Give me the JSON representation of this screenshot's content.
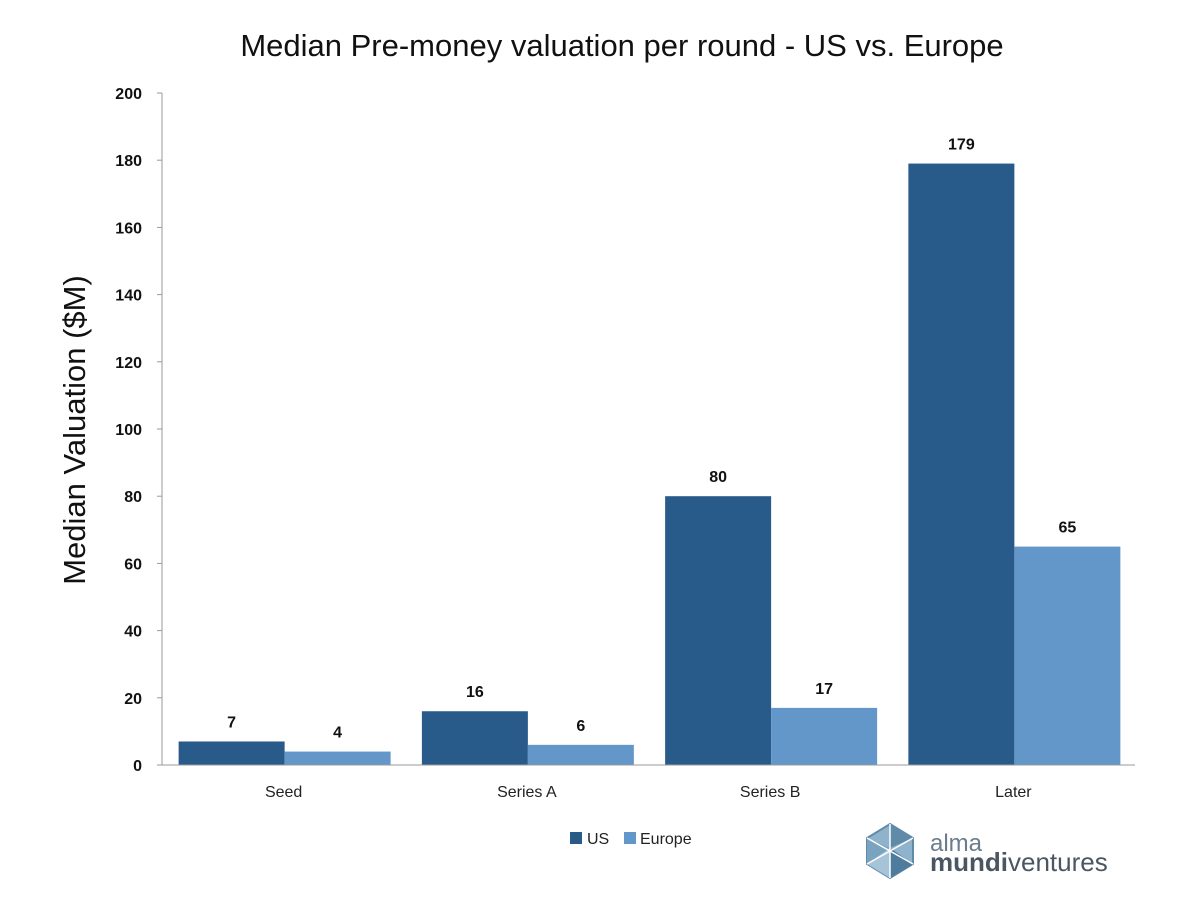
{
  "chart_data": {
    "type": "bar",
    "title": "Median Pre-money valuation per round - US vs. Europe",
    "xlabel": "",
    "ylabel": "Median Valuation ($M)",
    "ylim": [
      0,
      200
    ],
    "yticks": [
      0,
      20,
      40,
      60,
      80,
      100,
      120,
      140,
      160,
      180,
      200
    ],
    "categories": [
      "Seed",
      "Series A",
      "Series B",
      "Later"
    ],
    "series": [
      {
        "name": "US",
        "color": "#285a8a",
        "values": [
          7,
          16,
          80,
          179
        ]
      },
      {
        "name": "Europe",
        "color": "#6497c9",
        "values": [
          4,
          6,
          17,
          65
        ]
      }
    ],
    "legend_position": "bottom-center",
    "grid": false
  },
  "brand": {
    "line1": "alma",
    "line2_bold": "mundi",
    "line2_light": "ventures",
    "logo_icon": "polyhedron-logo-icon"
  }
}
